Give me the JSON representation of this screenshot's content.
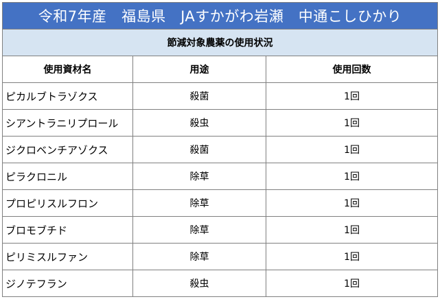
{
  "title": "令和7年産　福島県　JAすかがわ岩瀬　中通こしひかり",
  "subtitle": "節減対象農薬の使用状況",
  "table": {
    "headers": [
      "使用資材名",
      "用途",
      "使用回数"
    ],
    "rows": [
      {
        "name": "ピカルブトラゾクス",
        "use": "殺菌",
        "count": "1回"
      },
      {
        "name": "シアントラニリプロール",
        "use": "殺虫",
        "count": "1回"
      },
      {
        "name": "ジクロベンチアゾクス",
        "use": "殺菌",
        "count": "1回"
      },
      {
        "name": "ピラクロニル",
        "use": "除草",
        "count": "1回"
      },
      {
        "name": "プロピリスルフロン",
        "use": "除草",
        "count": "1回"
      },
      {
        "name": "ブロモブチド",
        "use": "除草",
        "count": "1回"
      },
      {
        "name": "ピリミスルファン",
        "use": "除草",
        "count": "1回"
      },
      {
        "name": "ジノテフラン",
        "use": "殺虫",
        "count": "1回"
      }
    ]
  },
  "colors": {
    "title_bg": "#4472c4",
    "title_text": "#ffffff",
    "subtitle_bg": "#d6e4f2",
    "border": "#7f7f7f"
  }
}
